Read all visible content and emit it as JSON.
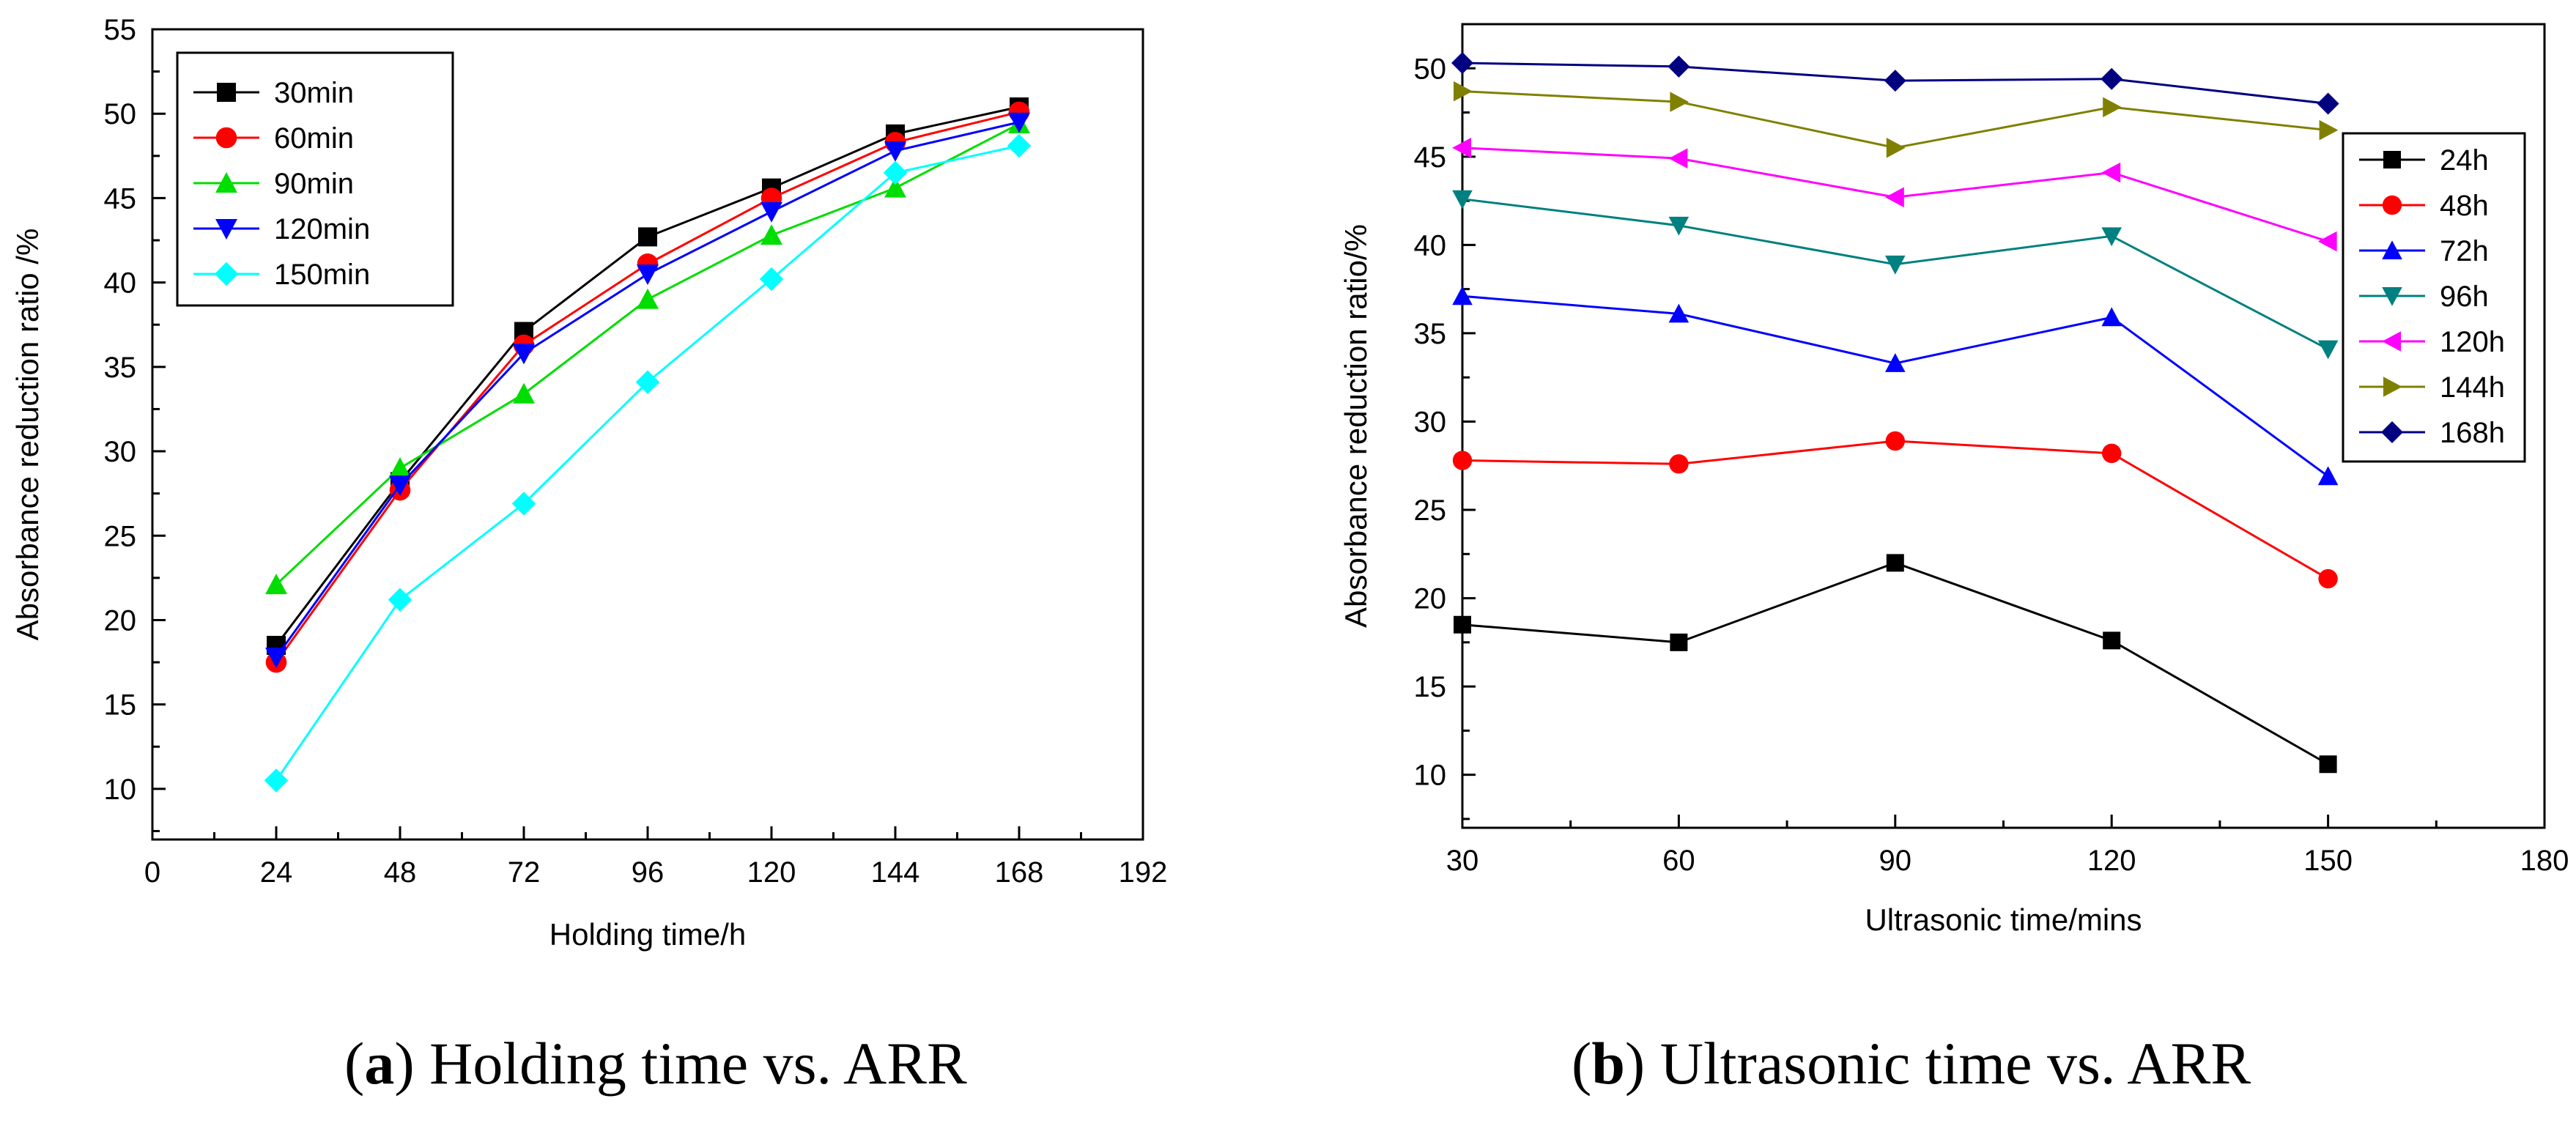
{
  "chart_data": [
    {
      "type": "line",
      "id": "a",
      "xlabel": "Holding time/h",
      "ylabel": "Absorbance reduction ratio /%",
      "xlim": [
        0,
        192
      ],
      "ylim": [
        7,
        55
      ],
      "xticks": [
        0,
        24,
        48,
        72,
        96,
        120,
        144,
        168,
        192
      ],
      "yticks": [
        10,
        15,
        20,
        25,
        30,
        35,
        40,
        45,
        50,
        55
      ],
      "legend_position": "top-left",
      "x": [
        24,
        48,
        72,
        96,
        120,
        144,
        168
      ],
      "series": [
        {
          "name": "30min",
          "color": "#000000",
          "marker": "square",
          "values": [
            18.5,
            28.2,
            37.1,
            42.7,
            45.6,
            48.8,
            50.4
          ]
        },
        {
          "name": "60min",
          "color": "#ff0000",
          "marker": "circle",
          "values": [
            17.5,
            27.7,
            36.3,
            41.1,
            45.0,
            48.3,
            50.1
          ]
        },
        {
          "name": "90min",
          "color": "#00dd00",
          "marker": "triangle-up",
          "values": [
            22.1,
            29.0,
            33.4,
            39.0,
            42.8,
            45.6,
            49.4
          ]
        },
        {
          "name": "120min",
          "color": "#0000ff",
          "marker": "triangle-down",
          "values": [
            17.8,
            28.0,
            35.8,
            40.5,
            44.2,
            47.8,
            49.5
          ]
        },
        {
          "name": "150min",
          "color": "#00ffff",
          "marker": "diamond",
          "values": [
            10.5,
            21.2,
            26.9,
            34.1,
            40.2,
            46.5,
            48.1
          ]
        }
      ],
      "caption_letter": "a",
      "caption_text": " Holding time vs. ARR"
    },
    {
      "type": "line",
      "id": "b",
      "xlabel": "Ultrasonic time/mins",
      "ylabel": "Absorbance reduction ratio/%",
      "xlim": [
        30,
        180
      ],
      "ylim": [
        7,
        52.5
      ],
      "xticks": [
        30,
        60,
        90,
        120,
        150,
        180
      ],
      "yticks": [
        10,
        15,
        20,
        25,
        30,
        35,
        40,
        45,
        50
      ],
      "legend_position": "top-right",
      "x": [
        30,
        60,
        90,
        120,
        150
      ],
      "series": [
        {
          "name": "24h",
          "color": "#000000",
          "marker": "square",
          "values": [
            18.5,
            17.5,
            22.0,
            17.6,
            10.6
          ]
        },
        {
          "name": "48h",
          "color": "#ff0000",
          "marker": "circle",
          "values": [
            27.8,
            27.6,
            28.9,
            28.2,
            21.1
          ]
        },
        {
          "name": "72h",
          "color": "#0000ff",
          "marker": "triangle-up",
          "values": [
            37.1,
            36.1,
            33.3,
            35.9,
            26.9
          ]
        },
        {
          "name": "96h",
          "color": "#008080",
          "marker": "triangle-down",
          "values": [
            42.6,
            41.1,
            38.9,
            40.5,
            34.1
          ]
        },
        {
          "name": "120h",
          "color": "#ff00ff",
          "marker": "triangle-left",
          "values": [
            45.5,
            44.9,
            42.7,
            44.1,
            40.2
          ]
        },
        {
          "name": "144h",
          "color": "#808000",
          "marker": "triangle-right",
          "values": [
            48.7,
            48.1,
            45.5,
            47.8,
            46.5
          ]
        },
        {
          "name": "168h",
          "color": "#000080",
          "marker": "diamond",
          "values": [
            50.3,
            50.1,
            49.3,
            49.4,
            48.0
          ]
        }
      ],
      "caption_letter": "b",
      "caption_text": " Ultrasonic time vs. ARR"
    }
  ]
}
